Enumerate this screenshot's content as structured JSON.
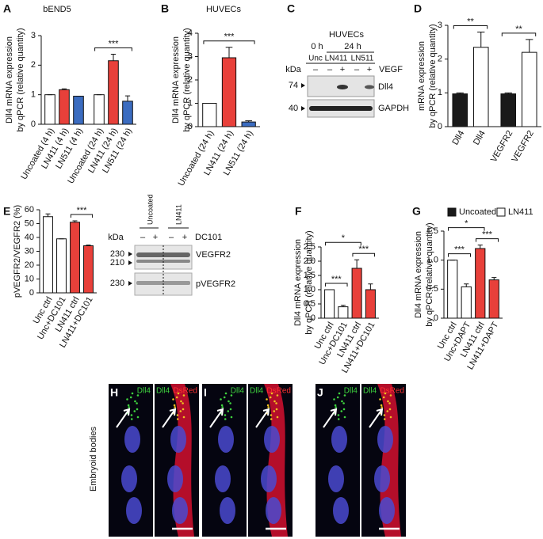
{
  "chart_data": [
    {
      "type": "bar",
      "panel": "A",
      "title": "bEND5",
      "ylabel": [
        "Dll4 mRNA expression",
        "by qPCR (relative quantity)"
      ],
      "categories": [
        "Uncoated (4 h)",
        "LN411 (4 h)",
        "LN511 (4 h)",
        "Uncoated (24 h)",
        "LN411 (24 h)",
        "LN511 (24 h)"
      ],
      "values": [
        1,
        1.17,
        0.95,
        1,
        2.15,
        0.78
      ],
      "errors": [
        0,
        0.03,
        0,
        0,
        0.22,
        0.18
      ],
      "colors": [
        "#ffffff",
        "#e8403a",
        "#3b6cc0",
        "#ffffff",
        "#e8403a",
        "#3b6cc0"
      ],
      "ylim": [
        0,
        3
      ],
      "yticks": [
        0,
        1,
        2,
        3
      ],
      "brackets": [
        {
          "text": "***",
          "span": [
            3,
            5
          ]
        }
      ]
    },
    {
      "type": "bar",
      "panel": "B",
      "title": "HUVECs",
      "ylabel": [
        "Dll4 mRNA expression",
        "by qPCR (relative quantity)"
      ],
      "categories": [
        "Uncoated (24 h)",
        "LN411 (24 h)",
        "LN511 (24 h)"
      ],
      "values": [
        1,
        2.95,
        0.2
      ],
      "errors": [
        0,
        0.45,
        0.05
      ],
      "colors": [
        "#ffffff",
        "#e8403a",
        "#3b6cc0"
      ],
      "ylim": [
        0,
        4
      ],
      "yticks": [
        0,
        1,
        2,
        3,
        4
      ],
      "brackets": [
        {
          "text": "***",
          "span": [
            0,
            2
          ]
        }
      ]
    },
    {
      "type": "bar",
      "panel": "D",
      "ylabel": [
        "mRNA expression",
        "by qPCR (relative quantity)"
      ],
      "categories": [
        "Dll4",
        "Dll4",
        "VEGFR2",
        "VEGFR2"
      ],
      "values": [
        0.97,
        2.35,
        0.97,
        2.2
      ],
      "errors": [
        0.03,
        0.45,
        0.03,
        0.38
      ],
      "colors": [
        "#1a1a1a",
        "#ffffff",
        "#1a1a1a",
        "#ffffff"
      ],
      "ylim": [
        0,
        3
      ],
      "yticks": [
        0,
        1,
        2,
        3
      ],
      "brackets": [
        {
          "text": "**",
          "span": [
            0,
            1
          ]
        },
        {
          "text": "**",
          "span": [
            2,
            3
          ]
        }
      ],
      "legend": [
        {
          "name": "Uncoated",
          "color": "#1a1a1a"
        },
        {
          "name": "LN411",
          "color": "#ffffff"
        }
      ]
    },
    {
      "type": "bar",
      "panel": "E",
      "ylabel": [
        "pVEGFR2/VEGFR2 (%)"
      ],
      "categories": [
        "Unc ctrl",
        "Unc+DC101",
        "LN411 ctrl",
        "LN411+DC101"
      ],
      "values": [
        55,
        39,
        51,
        34
      ],
      "errors": [
        2,
        0,
        1,
        0.5
      ],
      "colors": [
        "#ffffff",
        "#ffffff",
        "#e8403a",
        "#e8403a"
      ],
      "ylim": [
        0,
        60
      ],
      "yticks": [
        0,
        10,
        20,
        30,
        40,
        50,
        60
      ],
      "brackets": [
        {
          "text": "***",
          "span": [
            2,
            3
          ]
        }
      ]
    },
    {
      "type": "bar",
      "panel": "F",
      "ylabel": [
        "Dll4 mRNA expression",
        "by qPCR (relative quantity)"
      ],
      "categories": [
        "Unc ctrl",
        "Unc+DC101",
        "LN411 ctrl",
        "LN411+DC101"
      ],
      "values": [
        1,
        0.4,
        1.75,
        1.0
      ],
      "errors": [
        0,
        0.05,
        0.3,
        0.2
      ],
      "colors": [
        "#ffffff",
        "#ffffff",
        "#e8403a",
        "#e8403a"
      ],
      "ylim": [
        0,
        2.5
      ],
      "yticks": [
        0,
        0.5,
        {
          "value": 1,
          "label": "1.0"
        },
        1.5,
        {
          "value": 2,
          "label": "2.0"
        },
        2.5
      ],
      "brackets": [
        {
          "text": "***",
          "span": [
            0,
            1
          ]
        },
        {
          "text": "***",
          "span": [
            2,
            3
          ]
        },
        {
          "text": "*",
          "span": [
            0,
            2
          ]
        }
      ]
    },
    {
      "type": "bar",
      "panel": "G",
      "ylabel": [
        "Dll4 mRNA expression",
        "by qPCR (relative quantity)"
      ],
      "categories": [
        "Unc ctrl",
        "Unc+DAPT",
        "LN411 ctrl",
        "LN411+DAPT"
      ],
      "values": [
        1,
        0.54,
        1.2,
        0.66
      ],
      "errors": [
        0,
        0.05,
        0.06,
        0.04
      ],
      "colors": [
        "#ffffff",
        "#ffffff",
        "#e8403a",
        "#e8403a"
      ],
      "ylim": [
        0,
        1.5
      ],
      "yticks": [
        0,
        0.5,
        {
          "value": 1,
          "label": "1.0"
        },
        1.5
      ],
      "brackets": [
        {
          "text": "***",
          "span": [
            0,
            1
          ]
        },
        {
          "text": "***",
          "span": [
            2,
            3
          ]
        },
        {
          "text": "*",
          "span": [
            0,
            2
          ]
        }
      ]
    }
  ],
  "blot_c": {
    "panel": "C",
    "title": "HUVECs",
    "timepoints": [
      "0 h",
      "24 h"
    ],
    "coatings": [
      "Unc",
      "LN411",
      "LN511"
    ],
    "kda": "kDa",
    "signs": [
      "–",
      "–",
      "+",
      "–",
      "+"
    ],
    "treatment": "VEGF",
    "markers": [
      "74",
      "40"
    ],
    "proteins": [
      "Dll4",
      "GAPDH"
    ]
  },
  "blot_e": {
    "coatings": [
      "Uncoated",
      "LN411"
    ],
    "kda": "kDa",
    "signs": [
      "–",
      "+",
      "–",
      "+"
    ],
    "treatment": "DC101",
    "markers": [
      "230",
      "210",
      "230"
    ],
    "proteins": [
      "VEGFR2",
      "pVEGFR2"
    ]
  },
  "images": {
    "row_label": "Embryoid bodies",
    "panels": [
      {
        "letter": "H",
        "single": "Dll4",
        "merge": [
          "Dll4",
          "DsRed"
        ]
      },
      {
        "letter": "I",
        "single": "Dll4",
        "merge": [
          "Dll4",
          "DsRed"
        ]
      },
      {
        "letter": "J",
        "single": "Dll4",
        "merge": [
          "Dll4",
          "DsRed"
        ]
      }
    ]
  }
}
